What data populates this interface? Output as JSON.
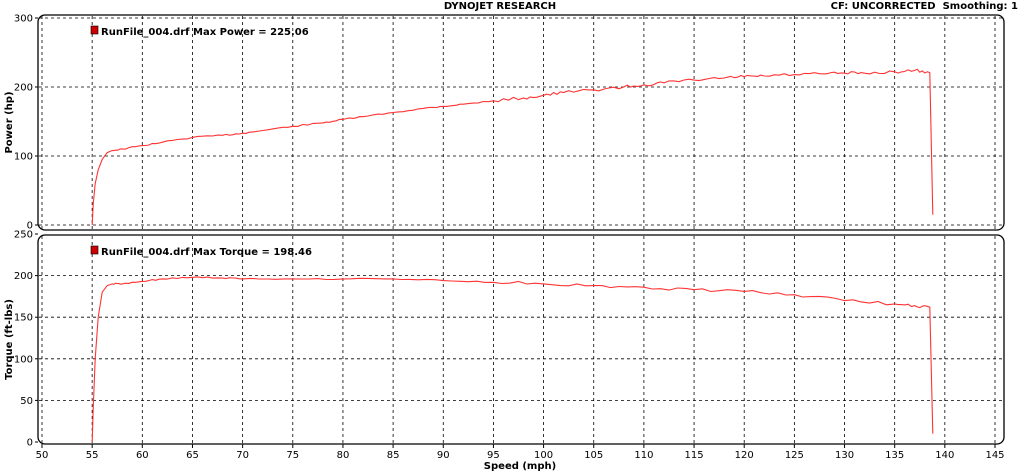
{
  "header": {
    "title": "DYNOJET RESEARCH",
    "correction_label": "CF: UNCORRECTED",
    "smoothing_label": "Smoothing: 1"
  },
  "chart_data": [
    {
      "type": "line",
      "ylabel": "Power (hp)",
      "ylim": [
        0,
        300
      ],
      "yticks": [
        0,
        100,
        200,
        300
      ],
      "xlim": [
        50,
        145
      ],
      "grid": true,
      "legend": {
        "text": "RunFile_004.drf Max Power = 225.06",
        "color": "#cc0000",
        "placement": "top-left"
      },
      "series": [
        {
          "color": "#ff3333",
          "x": [
            55.0,
            55.1,
            55.3,
            55.6,
            56.0,
            56.5,
            57.0,
            58,
            60,
            62,
            65,
            68,
            70,
            72,
            75,
            78,
            80,
            82,
            85,
            88,
            90,
            92,
            95,
            98,
            100,
            102,
            105,
            108,
            110,
            112,
            115,
            118,
            120,
            122,
            125,
            128,
            130,
            132,
            135,
            137,
            138.5,
            138.8
          ],
          "y": [
            0,
            30,
            60,
            80,
            95,
            105,
            108,
            110,
            115,
            120,
            127,
            130,
            133,
            137,
            143,
            148,
            153,
            157,
            163,
            169,
            172,
            175,
            180,
            184,
            188,
            192,
            196,
            200,
            203,
            206,
            210,
            213,
            215,
            216,
            218,
            219,
            220,
            220,
            222,
            224,
            221,
            15
          ]
        }
      ]
    },
    {
      "type": "line",
      "ylabel": "Torque (ft-lbs)",
      "xlabel": "Speed (mph)",
      "ylim": [
        0,
        250
      ],
      "yticks": [
        0,
        50,
        100,
        150,
        200,
        250
      ],
      "xlim": [
        50,
        145
      ],
      "xticks": [
        50,
        55,
        60,
        65,
        70,
        75,
        80,
        85,
        90,
        95,
        100,
        105,
        110,
        115,
        120,
        125,
        130,
        135,
        140,
        145
      ],
      "grid": true,
      "legend": {
        "text": "RunFile_004.drf Max Torque = 198.46",
        "color": "#cc0000",
        "placement": "top-left"
      },
      "series": [
        {
          "color": "#ff3333",
          "x": [
            55.0,
            55.1,
            55.3,
            55.6,
            56.0,
            56.5,
            57.0,
            58,
            60,
            62,
            65,
            68,
            70,
            75,
            80,
            85,
            90,
            95,
            100,
            105,
            110,
            115,
            120,
            125,
            130,
            135,
            137,
            138.5,
            138.8
          ],
          "y": [
            0,
            40,
            100,
            150,
            180,
            188,
            190,
            190,
            193,
            196,
            198,
            197,
            196,
            196,
            196,
            196,
            194,
            192,
            190,
            188,
            186,
            183,
            181,
            177,
            170,
            166,
            164,
            162,
            10
          ]
        }
      ]
    }
  ]
}
